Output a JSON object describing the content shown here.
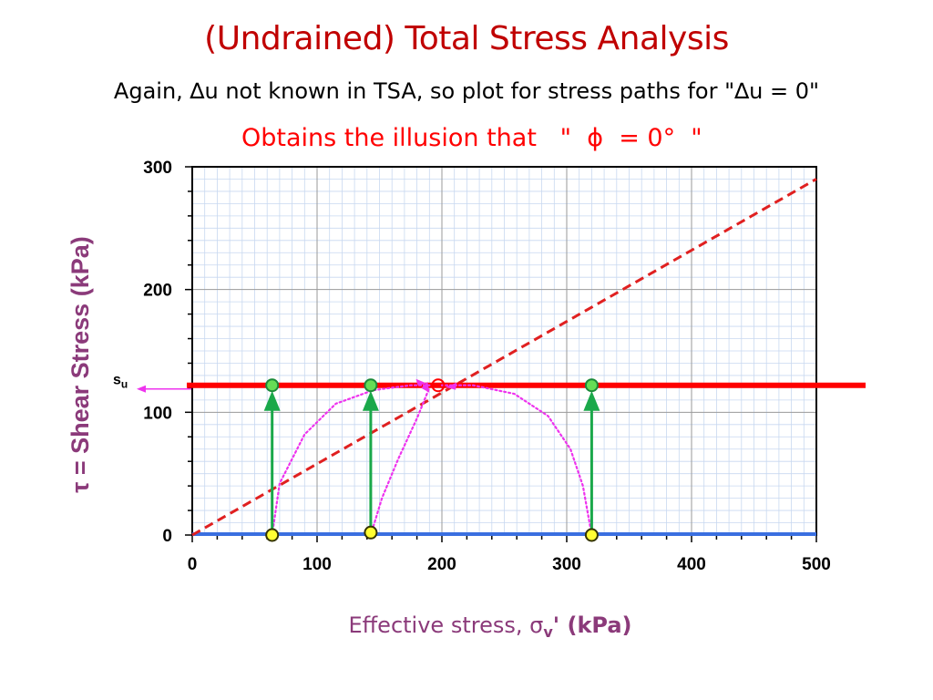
{
  "slide": {
    "title": "(Undrained) Total Stress Analysis",
    "subtitle": "Again, ∆u not known in TSA, so plot for stress paths for \"∆u = 0\"",
    "note": "Obtains the illusion that   \"  ϕ  = 0°  \""
  },
  "colors": {
    "title": "#c00000",
    "note": "#ff0000",
    "axis_label": "#8b3a7a",
    "su_line": "#ff0000",
    "failure_envelope": "#e02020",
    "baseline": "#3a6fe0",
    "arrows": "#1aa84a",
    "stress_paths": "#ee33ee",
    "minor_grid": "#c8d8f0",
    "major_grid": "#9a9a9a",
    "point_fill_yellow": "#ffff33",
    "point_fill_green": "#66dd55"
  },
  "chart_data": {
    "type": "line",
    "xlabel": "Effective stress, σv' (kPa)",
    "xlabel_parts": {
      "main": "Effective stress, ",
      "symbol": "σ",
      "sub": "v",
      "tail": "' (kPa)"
    },
    "ylabel": "τ = Shear Stress  (kPa)",
    "xlim": [
      0,
      500
    ],
    "ylim": [
      0,
      300
    ],
    "x_ticks": [
      "0",
      "100",
      "200",
      "300",
      "400",
      "500"
    ],
    "y_ticks": [
      "0",
      "100",
      "200",
      "300"
    ],
    "grid": true,
    "su_label": {
      "main": "s",
      "sub": "u"
    },
    "su_value": 122,
    "failure_envelope": {
      "x": [
        0,
        500
      ],
      "y": [
        0,
        290
      ]
    },
    "arrows": [
      {
        "x": 64,
        "y_from": 0,
        "y_to": 122
      },
      {
        "x": 143,
        "y_from": 0,
        "y_to": 122
      },
      {
        "x": 320,
        "y_from": 0,
        "y_to": 122
      }
    ],
    "stress_paths": [
      {
        "x": [
          64,
          70,
          90,
          115,
          145,
          175,
          190
        ],
        "y": [
          0,
          42,
          82,
          107,
          118,
          122,
          122
        ]
      },
      {
        "x": [
          143,
          152,
          165,
          180,
          190
        ],
        "y": [
          0,
          30,
          62,
          95,
          120
        ]
      },
      {
        "x": [
          320,
          313,
          303,
          285,
          258,
          225,
          200
        ],
        "y": [
          0,
          40,
          70,
          97,
          115,
          122,
          122
        ]
      }
    ],
    "points": [
      {
        "x": 64,
        "y": 0,
        "fill": "yellow"
      },
      {
        "x": 143,
        "y": 2,
        "fill": "yellow"
      },
      {
        "x": 320,
        "y": 0,
        "fill": "yellow"
      },
      {
        "x": 64,
        "y": 122,
        "fill": "green"
      },
      {
        "x": 143,
        "y": 122,
        "fill": "green"
      },
      {
        "x": 320,
        "y": 122,
        "fill": "green"
      },
      {
        "x": 197,
        "y": 122,
        "fill": "none"
      }
    ]
  }
}
